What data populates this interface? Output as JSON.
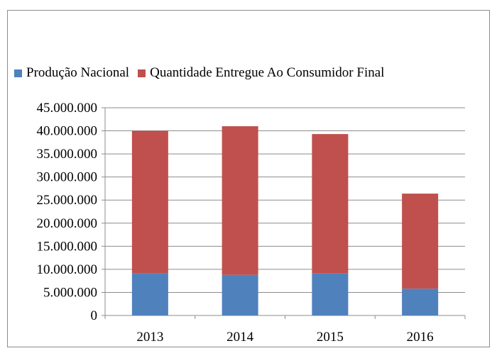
{
  "chart_data": {
    "type": "bar",
    "stacked": true,
    "categories": [
      "2013",
      "2014",
      "2015",
      "2016"
    ],
    "series": [
      {
        "name": "Produção Nacional",
        "color": "#4f81bd",
        "values": [
          9200000,
          8800000,
          9100000,
          5800000
        ]
      },
      {
        "name": "Quantidade Entregue Ao Consumidor Final",
        "color": "#c0504d",
        "values": [
          30800000,
          32200000,
          30200000,
          20600000
        ]
      }
    ],
    "ylim": [
      0,
      45000000
    ],
    "yticks": [
      "0",
      "5.000.000",
      "10.000.000",
      "15.000.000",
      "20.000.000",
      "25.000.000",
      "30.000.000",
      "35.000.000",
      "40.000.000",
      "45.000.000"
    ],
    "grid": true,
    "legend_position": "top"
  }
}
